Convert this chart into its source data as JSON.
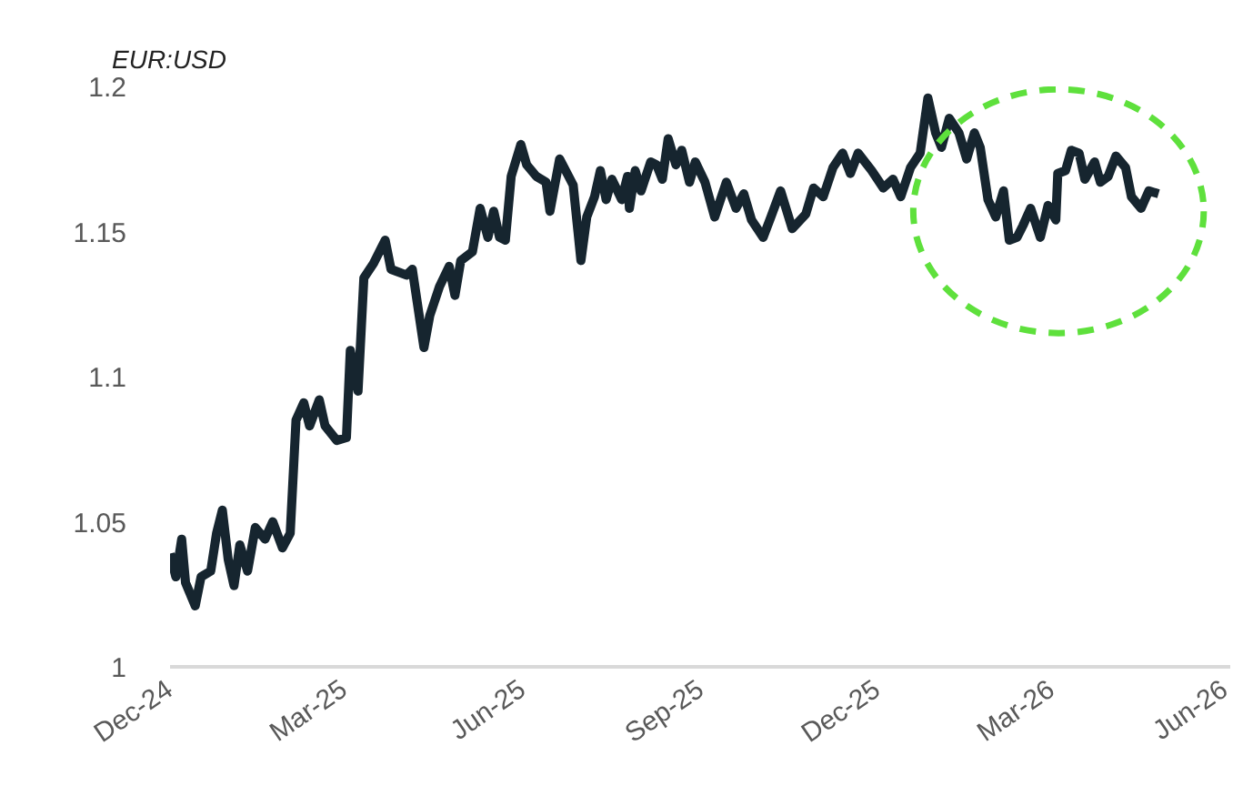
{
  "chart_data": {
    "type": "line",
    "ylabel": "EUR:USD",
    "x": [
      "2024-12-01",
      "2024-12-04",
      "2024-12-07",
      "2024-12-09",
      "2024-12-14",
      "2024-12-17",
      "2024-12-22",
      "2024-12-25",
      "2024-12-28",
      "2024-12-31",
      "2025-01-03",
      "2025-01-06",
      "2025-01-10",
      "2025-01-14",
      "2025-01-19",
      "2025-01-23",
      "2025-01-28",
      "2025-02-01",
      "2025-02-04",
      "2025-02-08",
      "2025-02-11",
      "2025-02-16",
      "2025-02-19",
      "2025-02-25",
      "2025-03-02",
      "2025-03-04",
      "2025-03-08",
      "2025-03-11",
      "2025-03-16",
      "2025-03-22",
      "2025-03-25",
      "2025-04-02",
      "2025-04-05",
      "2025-04-11",
      "2025-04-14",
      "2025-04-19",
      "2025-04-24",
      "2025-04-27",
      "2025-04-30",
      "2025-05-06",
      "2025-05-10",
      "2025-05-14",
      "2025-05-17",
      "2025-05-20",
      "2025-05-23",
      "2025-05-26",
      "2025-05-31",
      "2025-06-03",
      "2025-06-08",
      "2025-06-13",
      "2025-06-15",
      "2025-06-20",
      "2025-06-27",
      "2025-07-01",
      "2025-07-04",
      "2025-07-08",
      "2025-07-11",
      "2025-07-14",
      "2025-07-17",
      "2025-07-22",
      "2025-07-25",
      "2025-07-26",
      "2025-07-29",
      "2025-08-01",
      "2025-08-06",
      "2025-08-09",
      "2025-08-12",
      "2025-08-15",
      "2025-08-19",
      "2025-08-22",
      "2025-08-26",
      "2025-08-29",
      "2025-09-03",
      "2025-09-08",
      "2025-09-14",
      "2025-09-19",
      "2025-09-23",
      "2025-09-27",
      "2025-10-03",
      "2025-10-07",
      "2025-10-12",
      "2025-10-18",
      "2025-10-25",
      "2025-10-29",
      "2025-11-03",
      "2025-11-08",
      "2025-11-13",
      "2025-11-17",
      "2025-11-21",
      "2025-11-28",
      "2025-12-04",
      "2025-12-09",
      "2025-12-13",
      "2025-12-18",
      "2025-12-23",
      "2025-12-27",
      "2025-12-31",
      "2026-01-03",
      "2026-01-07",
      "2026-01-12",
      "2026-01-16",
      "2026-01-20",
      "2026-01-23",
      "2026-01-27",
      "2026-01-31",
      "2026-02-04",
      "2026-02-07",
      "2026-02-11",
      "2026-02-14",
      "2026-02-18",
      "2026-02-23",
      "2026-02-27",
      "2026-03-03",
      "2026-03-04",
      "2026-03-08",
      "2026-03-11",
      "2026-03-15",
      "2026-03-18",
      "2026-03-23",
      "2026-03-26",
      "2026-03-30",
      "2026-04-03",
      "2026-04-08",
      "2026-04-11",
      "2026-04-16",
      "2026-04-20",
      "2026-04-25"
    ],
    "series": [
      {
        "color": "#16252f",
        "values": [
          1.039,
          1.031,
          1.044,
          1.029,
          1.021,
          1.031,
          1.033,
          1.046,
          1.054,
          1.037,
          1.028,
          1.042,
          1.033,
          1.048,
          1.044,
          1.05,
          1.041,
          1.046,
          1.085,
          1.091,
          1.083,
          1.092,
          1.083,
          1.078,
          1.079,
          1.109,
          1.095,
          1.134,
          1.139,
          1.147,
          1.137,
          1.135,
          1.137,
          1.11,
          1.121,
          1.131,
          1.138,
          1.128,
          1.14,
          1.143,
          1.158,
          1.148,
          1.157,
          1.148,
          1.147,
          1.169,
          1.18,
          1.173,
          1.169,
          1.167,
          1.157,
          1.175,
          1.166,
          1.14,
          1.155,
          1.162,
          1.171,
          1.161,
          1.168,
          1.161,
          1.169,
          1.158,
          1.171,
          1.164,
          1.174,
          1.173,
          1.168,
          1.182,
          1.173,
          1.178,
          1.167,
          1.174,
          1.167,
          1.155,
          1.167,
          1.158,
          1.163,
          1.154,
          1.148,
          1.155,
          1.164,
          1.151,
          1.156,
          1.165,
          1.162,
          1.172,
          1.177,
          1.17,
          1.177,
          1.171,
          1.165,
          1.168,
          1.162,
          1.172,
          1.177,
          1.196,
          1.184,
          1.179,
          1.189,
          1.184,
          1.175,
          1.184,
          1.179,
          1.161,
          1.155,
          1.164,
          1.147,
          1.148,
          1.152,
          1.158,
          1.148,
          1.159,
          1.154,
          1.17,
          1.171,
          1.178,
          1.177,
          1.168,
          1.174,
          1.167,
          1.169,
          1.176,
          1.172,
          1.162,
          1.158,
          1.164,
          1.163
        ]
      }
    ],
    "xlim": [
      "2024-12-01",
      "2026-06-01"
    ],
    "xticks": [
      {
        "value": "2024-12-01",
        "label": "Dec-24"
      },
      {
        "value": "2025-03-01",
        "label": "Mar-25"
      },
      {
        "value": "2025-06-01",
        "label": "Jun-25"
      },
      {
        "value": "2025-09-01",
        "label": "Sep-25"
      },
      {
        "value": "2025-12-01",
        "label": "Dec-25"
      },
      {
        "value": "2026-03-01",
        "label": "Mar-26"
      },
      {
        "value": "2026-06-01",
        "label": "Jun-26"
      }
    ],
    "ylim": [
      1,
      1.2
    ],
    "yticks": [
      {
        "value": 1,
        "label": "1"
      },
      {
        "value": 1.05,
        "label": "1.05"
      },
      {
        "value": 1.1,
        "label": "1.1"
      },
      {
        "value": 1.15,
        "label": "1.15"
      },
      {
        "value": 1.2,
        "label": "1.2"
      }
    ],
    "grid": false,
    "marker": "none",
    "line_style": "solid"
  }
}
